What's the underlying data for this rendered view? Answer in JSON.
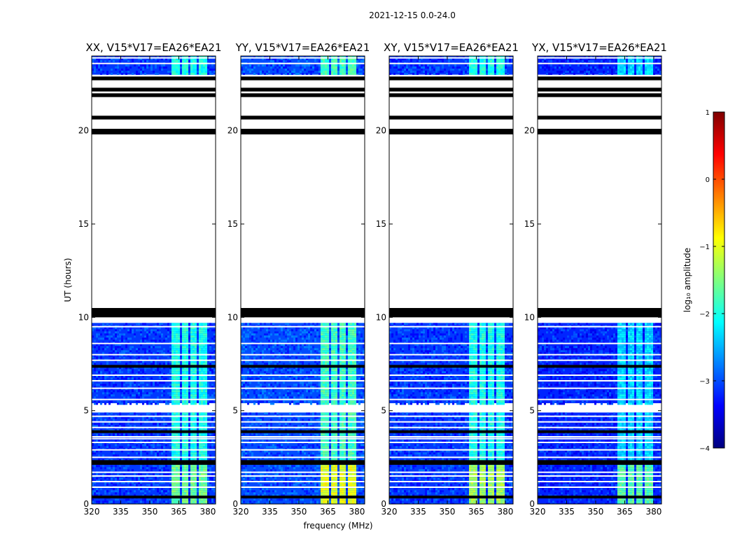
{
  "figure_title": "2021-12-15 0.0-24.0",
  "colorbar_label": "log₁₀ amplitude",
  "colormap": [
    "#00007f",
    "#0000ff",
    "#007fff",
    "#00ffff",
    "#7fff7f",
    "#ffff00",
    "#ff7f00",
    "#ff0000",
    "#7f0000"
  ],
  "chart_data": {
    "type": "heatmap",
    "xlabel": "frequency (MHz)",
    "ylabel": "UT (hours)",
    "xlim": [
      320,
      384
    ],
    "ylim": [
      0,
      24
    ],
    "xticks": [
      320,
      335,
      350,
      365,
      380
    ],
    "yticks": [
      0,
      5,
      10,
      15,
      20
    ],
    "colorbar": {
      "min": -4,
      "max": 1,
      "ticks": [
        -4,
        -3,
        -2,
        -1,
        0,
        1
      ],
      "tick_labels": [
        "−4",
        "−3",
        "−2",
        "−1",
        "0",
        "1"
      ]
    },
    "panels": [
      {
        "title": "XX, V15*V17=EA26*EA21",
        "background_level": -3.1,
        "band_level": -2.0,
        "low_hours_level": -1.6
      },
      {
        "title": "YY, V15*V17=EA26*EA21",
        "background_level": -3.0,
        "band_level": -1.8,
        "low_hours_level": -1.0
      },
      {
        "title": "XY, V15*V17=EA26*EA21",
        "background_level": -3.1,
        "band_level": -2.0,
        "low_hours_level": -1.3
      },
      {
        "title": "YX, V15*V17=EA26*EA21",
        "background_level": -3.2,
        "band_level": -2.3,
        "low_hours_level": -1.7
      }
    ],
    "rfi_band_MHz": [
      [
        361,
        365
      ],
      [
        366.5,
        369.5
      ],
      [
        370.5,
        373.5
      ],
      [
        375,
        379
      ]
    ],
    "data_segments_hours": [
      [
        0,
        4.9
      ],
      [
        5.4,
        9.7
      ],
      [
        23,
        24
      ]
    ],
    "flagged_rows_hours": [
      [
        0.3,
        0.45
      ],
      [
        2.1,
        2.35
      ],
      [
        3.8,
        3.95
      ],
      [
        7.3,
        7.45
      ],
      [
        10.0,
        10.5
      ],
      [
        19.8,
        20.1
      ],
      [
        20.6,
        20.8
      ],
      [
        21.8,
        22.0
      ],
      [
        22.1,
        22.3
      ],
      [
        22.7,
        22.9
      ]
    ],
    "gap_lines_hours": [
      0.9,
      1.2,
      1.5,
      1.7,
      2.5,
      2.9,
      3.3,
      3.5,
      3.6,
      4.1,
      4.4,
      4.7,
      5.1,
      5.6,
      6.2,
      6.6,
      6.9,
      7.7,
      8.0,
      8.6,
      9.5,
      23.6,
      23.9
    ]
  }
}
